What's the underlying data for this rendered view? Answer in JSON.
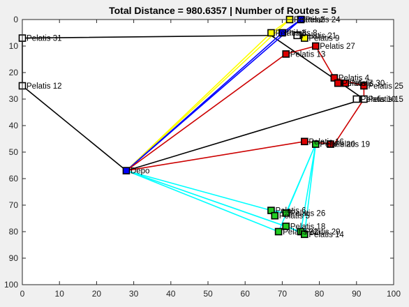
{
  "chart_data": {
    "type": "scatter",
    "title": "Total Distance = 980.6357  | Number of Routes = 5",
    "xlim": [
      0,
      100
    ],
    "ylim": [
      0,
      100
    ],
    "y_reversed": true,
    "grid": false,
    "xticks": [
      "0",
      "10",
      "20",
      "30",
      "40",
      "50",
      "60",
      "70",
      "80",
      "90",
      "100"
    ],
    "yticks": [
      "0",
      "10",
      "20",
      "30",
      "40",
      "50",
      "60",
      "70",
      "80",
      "90",
      "100"
    ],
    "depot": {
      "label": "Depo",
      "x": 28,
      "y": 57,
      "color": "#0000ff"
    },
    "routes": [
      {
        "color": "#000000",
        "path": [
          [
            28,
            57
          ],
          [
            0,
            25
          ],
          [
            0,
            7
          ],
          [
            67,
            6
          ],
          [
            92,
            30
          ],
          [
            28,
            57
          ]
        ]
      },
      {
        "color": "#ffff00",
        "path": [
          [
            28,
            57
          ],
          [
            72,
            0
          ],
          [
            67,
            5
          ],
          [
            28,
            57
          ]
        ]
      },
      {
        "color": "#0000ff",
        "path": [
          [
            28,
            57
          ],
          [
            75,
            0
          ],
          [
            70,
            5
          ],
          [
            28,
            57
          ]
        ]
      },
      {
        "color": "#cc0000",
        "path": [
          [
            28,
            57
          ],
          [
            71,
            13
          ],
          [
            79,
            10
          ],
          [
            84,
            22
          ],
          [
            92,
            25
          ],
          [
            92,
            30
          ],
          [
            84,
            47
          ],
          [
            76,
            46
          ],
          [
            28,
            57
          ]
        ]
      },
      {
        "color": "#00ffff",
        "path": [
          [
            28,
            57
          ],
          [
            67,
            72
          ],
          [
            71,
            73
          ],
          [
            79,
            47
          ],
          [
            75,
            80
          ],
          [
            28,
            57
          ],
          [
            71,
            78
          ],
          [
            76,
            81
          ],
          [
            79,
            47
          ],
          [
            69,
            80
          ],
          [
            28,
            57
          ]
        ]
      }
    ],
    "points": [
      {
        "x": 0,
        "y": 7,
        "label": "Pelatis 31",
        "color": "#ffffff"
      },
      {
        "x": 0,
        "y": 25,
        "label": "Pelatis 12",
        "color": "#ffffff"
      },
      {
        "x": 92,
        "y": 30,
        "label": "Pelatis 15",
        "color": "#ffffff"
      },
      {
        "x": 90,
        "y": 30,
        "label": "Pelatis 10",
        "color": "#ffffff"
      },
      {
        "x": 74,
        "y": 6,
        "label": "Pelatis 21",
        "color": "#ffffff"
      },
      {
        "x": 72,
        "y": 0,
        "label": "Pelatis 2",
        "color": "#ffff00"
      },
      {
        "x": 67,
        "y": 5,
        "label": "Pelatis 3",
        "color": "#ffff00"
      },
      {
        "x": 76,
        "y": 7,
        "label": "Pelatis 9",
        "color": "#ffff00"
      },
      {
        "x": 75,
        "y": 0,
        "label": "Pelatis 24",
        "color": "#0000ff"
      },
      {
        "x": 70,
        "y": 5,
        "label": "Pelatis 8",
        "color": "#0000ff"
      },
      {
        "x": 71,
        "y": 13,
        "label": "Pelatis 13",
        "color": "#dd0000"
      },
      {
        "x": 79,
        "y": 10,
        "label": "Pelatis 27",
        "color": "#dd0000"
      },
      {
        "x": 84,
        "y": 22,
        "label": "Pelatis 4",
        "color": "#dd0000"
      },
      {
        "x": 85,
        "y": 24,
        "label": "Pelatis 7",
        "color": "#dd0000"
      },
      {
        "x": 87,
        "y": 24,
        "label": "Pelatis 30",
        "color": "#dd0000"
      },
      {
        "x": 92,
        "y": 25,
        "label": "Pelatis 25",
        "color": "#dd0000"
      },
      {
        "x": 76,
        "y": 46,
        "label": "Pelatis 16",
        "color": "#dd0000"
      },
      {
        "x": 83,
        "y": 47,
        "label": "Pelatis 19",
        "color": "#dd0000"
      },
      {
        "x": 79,
        "y": 47,
        "label": "Pelatis 20",
        "color": "#22cc22"
      },
      {
        "x": 67,
        "y": 72,
        "label": "Pelatis 6",
        "color": "#22cc22"
      },
      {
        "x": 71,
        "y": 73,
        "label": "Pelatis 26",
        "color": "#22cc22"
      },
      {
        "x": 68,
        "y": 74,
        "label": "Pelatis 5",
        "color": "#22cc22"
      },
      {
        "x": 71,
        "y": 78,
        "label": "Pelatis 18",
        "color": "#22cc22"
      },
      {
        "x": 69,
        "y": 80,
        "label": "Pelatis 22",
        "color": "#22cc22"
      },
      {
        "x": 75,
        "y": 80,
        "label": "Pelatis 29",
        "color": "#22cc22"
      },
      {
        "x": 76,
        "y": 81,
        "label": "Pelatis 14",
        "color": "#22cc22"
      }
    ]
  }
}
